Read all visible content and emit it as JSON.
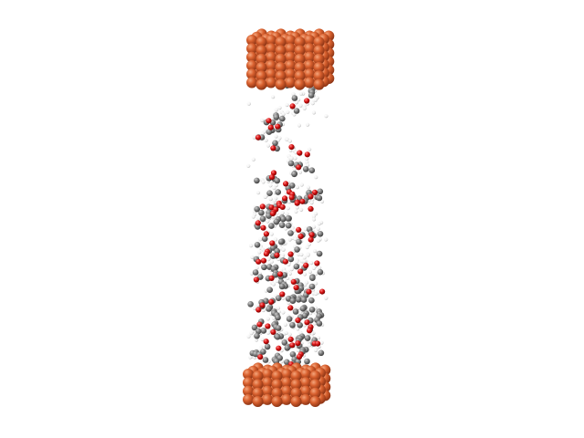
{
  "scene": {
    "kind": "molecular-dynamics-render",
    "background_color": "#ffffff",
    "electrode_material_color": "#d2582a",
    "atom_colors": {
      "carbon": "#7d7d7d",
      "oxygen": "#d40f0f",
      "hydrogen": "#f2f2f2"
    },
    "components": [
      "top-copper-electrode",
      "molecular-chain",
      "bottom-copper-electrode"
    ]
  }
}
